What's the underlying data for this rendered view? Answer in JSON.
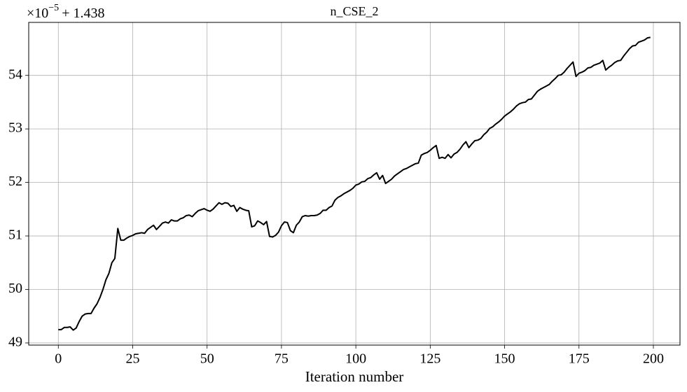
{
  "chart_data": {
    "type": "line",
    "title": "n_CSE_2",
    "x_label": "Iteration number",
    "y_offset": {
      "base": "×10",
      "exponent": "−5",
      "shift": "+ 1.438"
    },
    "grid": true,
    "xlim": [
      -9.95,
      208.95
    ],
    "xticks": [
      0,
      25,
      50,
      75,
      100,
      125,
      150,
      175,
      200
    ],
    "ylim": [
      48.96,
      54.99
    ],
    "yticks": [
      49,
      50,
      51,
      52,
      53,
      54
    ],
    "x": [
      0,
      1,
      2,
      3,
      4,
      5,
      6,
      7,
      8,
      9,
      10,
      11,
      12,
      13,
      14,
      15,
      16,
      17,
      18,
      19,
      20,
      21,
      22,
      23,
      24,
      25,
      26,
      27,
      28,
      29,
      30,
      31,
      32,
      33,
      34,
      35,
      36,
      37,
      38,
      39,
      40,
      41,
      42,
      43,
      44,
      45,
      46,
      47,
      48,
      49,
      50,
      51,
      52,
      53,
      54,
      55,
      56,
      57,
      58,
      59,
      60,
      61,
      62,
      63,
      64,
      65,
      66,
      67,
      68,
      69,
      70,
      71,
      72,
      73,
      74,
      75,
      76,
      77,
      78,
      79,
      80,
      81,
      82,
      83,
      84,
      85,
      86,
      87,
      88,
      89,
      90,
      91,
      92,
      93,
      94,
      95,
      96,
      97,
      98,
      99,
      100,
      101,
      102,
      103,
      104,
      105,
      106,
      107,
      108,
      109,
      110,
      111,
      112,
      113,
      114,
      115,
      116,
      117,
      118,
      119,
      120,
      121,
      122,
      123,
      124,
      125,
      126,
      127,
      128,
      129,
      130,
      131,
      132,
      133,
      134,
      135,
      136,
      137,
      138,
      139,
      140,
      141,
      142,
      143,
      144,
      145,
      146,
      147,
      148,
      149,
      150,
      151,
      152,
      153,
      154,
      155,
      156,
      157,
      158,
      159,
      160,
      161,
      162,
      163,
      164,
      165,
      166,
      167,
      168,
      169,
      170,
      171,
      172,
      173,
      174,
      175,
      176,
      177,
      178,
      179,
      180,
      181,
      182,
      183,
      184,
      185,
      186,
      187,
      188,
      189,
      190,
      191,
      192,
      193,
      194,
      195,
      196,
      197,
      198,
      199
    ],
    "series": [
      {
        "color": "#000000",
        "values": [
          49.25,
          49.25,
          49.29,
          49.29,
          49.3,
          49.24,
          49.28,
          49.4,
          49.5,
          49.54,
          49.55,
          49.55,
          49.65,
          49.73,
          49.85,
          50.0,
          50.18,
          50.3,
          50.5,
          50.58,
          51.14,
          50.92,
          50.92,
          50.96,
          50.99,
          51.01,
          51.04,
          51.05,
          51.06,
          51.05,
          51.12,
          51.16,
          51.2,
          51.12,
          51.18,
          51.24,
          51.26,
          51.24,
          51.3,
          51.28,
          51.28,
          51.32,
          51.34,
          51.38,
          51.39,
          51.36,
          51.42,
          51.47,
          51.49,
          51.51,
          51.48,
          51.46,
          51.5,
          51.56,
          51.62,
          51.59,
          51.62,
          51.61,
          51.55,
          51.57,
          51.46,
          51.53,
          51.5,
          51.48,
          51.47,
          51.17,
          51.19,
          51.28,
          51.25,
          51.21,
          51.27,
          50.99,
          50.98,
          51.01,
          51.07,
          51.19,
          51.26,
          51.25,
          51.1,
          51.06,
          51.2,
          51.26,
          51.36,
          51.38,
          51.37,
          51.38,
          51.38,
          51.39,
          51.42,
          51.48,
          51.48,
          51.53,
          51.56,
          51.67,
          51.72,
          51.75,
          51.79,
          51.82,
          51.85,
          51.89,
          51.95,
          51.97,
          52.01,
          52.02,
          52.07,
          52.09,
          52.14,
          52.18,
          52.06,
          52.13,
          51.98,
          52.02,
          52.06,
          52.12,
          52.16,
          52.2,
          52.24,
          52.26,
          52.29,
          52.32,
          52.35,
          52.36,
          52.51,
          52.54,
          52.56,
          52.6,
          52.65,
          52.69,
          52.45,
          52.47,
          52.45,
          52.52,
          52.46,
          52.53,
          52.56,
          52.62,
          52.7,
          52.76,
          52.65,
          52.72,
          52.78,
          52.79,
          52.82,
          52.89,
          52.94,
          53.01,
          53.04,
          53.09,
          53.13,
          53.18,
          53.24,
          53.28,
          53.32,
          53.37,
          53.43,
          53.47,
          53.49,
          53.5,
          53.55,
          53.56,
          53.63,
          53.7,
          53.74,
          53.77,
          53.8,
          53.83,
          53.89,
          53.94,
          54.0,
          54.01,
          54.06,
          54.13,
          54.19,
          54.25,
          53.98,
          54.04,
          54.06,
          54.09,
          54.14,
          54.15,
          54.19,
          54.21,
          54.23,
          54.28,
          54.1,
          54.15,
          54.19,
          54.24,
          54.27,
          54.28,
          54.36,
          54.43,
          54.5,
          54.55,
          54.56,
          54.62,
          54.64,
          54.66,
          54.7,
          54.71
        ]
      }
    ]
  }
}
